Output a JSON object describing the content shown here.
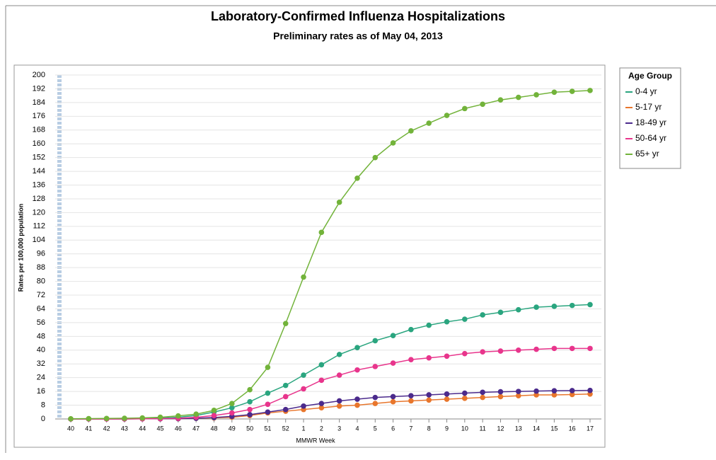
{
  "chart_data": {
    "type": "line",
    "title": "Laboratory-Confirmed Influenza Hospitalizations",
    "subtitle": "Preliminary rates as of May 04, 2013",
    "x_label": "MMWR Week",
    "y_label": "Rates per 100,000 population",
    "legend_title": "Age Group",
    "legend_position": "right",
    "grid": true,
    "categories": [
      "40",
      "41",
      "42",
      "43",
      "44",
      "45",
      "46",
      "47",
      "48",
      "49",
      "50",
      "51",
      "52",
      "1",
      "2",
      "3",
      "4",
      "5",
      "6",
      "7",
      "8",
      "9",
      "10",
      "11",
      "12",
      "13",
      "14",
      "15",
      "16",
      "17"
    ],
    "ylim": [
      0,
      200
    ],
    "yticks": [
      0,
      8,
      16,
      24,
      32,
      40,
      48,
      56,
      64,
      72,
      80,
      88,
      96,
      104,
      112,
      120,
      128,
      136,
      144,
      152,
      160,
      168,
      176,
      184,
      192,
      200
    ],
    "series": [
      {
        "name": "0-4 yr",
        "color": "#2aa57f",
        "values": [
          0,
          0.1,
          0.1,
          0.2,
          0.3,
          0.5,
          1,
          2,
          4,
          6.5,
          10,
          15,
          19.5,
          25.5,
          31.5,
          37.5,
          41.5,
          45.5,
          48.5,
          52,
          54.5,
          56.5,
          58,
          60.5,
          62,
          63.5,
          65,
          65.5,
          66,
          66.5
        ]
      },
      {
        "name": "5-17 yr",
        "color": "#e8762c",
        "values": [
          0,
          0,
          0,
          0,
          0.1,
          0.1,
          0.2,
          0.4,
          0.6,
          1,
          2,
          3.5,
          4.5,
          5.5,
          6.5,
          7.5,
          8,
          9,
          10,
          10.5,
          11,
          11.5,
          12,
          12.5,
          13,
          13.5,
          14,
          14,
          14.2,
          14.5
        ]
      },
      {
        "name": "18-49 yr",
        "color": "#4b2a8c",
        "values": [
          0,
          0,
          0,
          0,
          0.1,
          0.1,
          0.2,
          0.4,
          0.8,
          1.5,
          2.5,
          4,
          5.5,
          7.5,
          9,
          10.5,
          11.5,
          12.5,
          13,
          13.5,
          14,
          14.5,
          15,
          15.5,
          15.8,
          16,
          16.2,
          16.4,
          16.5,
          16.6
        ]
      },
      {
        "name": "50-64 yr",
        "color": "#e8358c",
        "values": [
          0,
          0,
          0,
          0.1,
          0.1,
          0.2,
          0.4,
          1,
          2,
          3.5,
          5.5,
          8.5,
          13,
          17.5,
          22.5,
          25.5,
          28.5,
          30.5,
          32.5,
          34.5,
          35.5,
          36.5,
          38,
          39,
          39.5,
          40,
          40.5,
          41,
          41,
          41
        ]
      },
      {
        "name": "65+ yr",
        "color": "#72b33a",
        "values": [
          0.1,
          0.2,
          0.3,
          0.4,
          0.6,
          1,
          1.8,
          2.8,
          5,
          9,
          17,
          30,
          55.5,
          82.5,
          108.5,
          126,
          140,
          152,
          160.5,
          167.5,
          172,
          176.5,
          180.5,
          183,
          185.5,
          187,
          188.5,
          190,
          190.5,
          191
        ]
      }
    ]
  }
}
